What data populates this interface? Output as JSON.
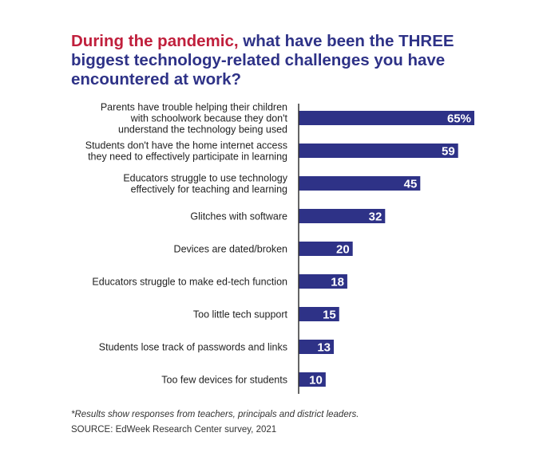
{
  "title": {
    "highlight": "During the pandemic,",
    "rest": " what have been the THREE biggest technology-related challenges you have encountered at work?"
  },
  "colors": {
    "bar": "#2e3287",
    "title_text": "#2e3287",
    "title_highlight": "#c01f3c",
    "axis": "#333333",
    "value_label": "#ffffff",
    "category_label": "#222222"
  },
  "chart_data": {
    "type": "bar",
    "orientation": "horizontal",
    "categories": [
      [
        "Parents have trouble helping their children",
        "with schoolwork because they don't",
        "understand the technology being used"
      ],
      [
        "Students don't have the home internet access",
        "they need to effectively participate in learning"
      ],
      [
        "Educators struggle to use technology",
        "effectively for teaching and learning"
      ],
      [
        "Glitches with software"
      ],
      [
        "Devices are dated/broken"
      ],
      [
        "Educators struggle to make ed-tech function"
      ],
      [
        "Too little tech support"
      ],
      [
        "Students lose track of passwords and links"
      ],
      [
        "Too few devices for students"
      ]
    ],
    "values": [
      65,
      59,
      45,
      32,
      20,
      18,
      15,
      13,
      10
    ],
    "value_labels": [
      "65%",
      "59",
      "45",
      "32",
      "20",
      "18",
      "15",
      "13",
      "10"
    ],
    "xlim": [
      0,
      65
    ],
    "grid": false
  },
  "footnote": "*Results show responses from teachers, principals and district leaders.",
  "source": "SOURCE: EdWeek Research Center survey, 2021"
}
